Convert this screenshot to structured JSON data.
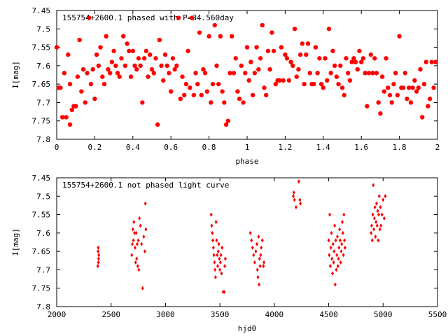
{
  "colors": {
    "series": "#ff0000",
    "axes": "#000000",
    "background": "#ffffff"
  },
  "chart_data": [
    {
      "type": "scatter",
      "title": "155754+2600.1 phased with P=34.560day",
      "xlabel": "phase",
      "ylabel": "I[mag]",
      "xlim": [
        0,
        2
      ],
      "ylim": [
        7.8,
        7.45
      ],
      "y_inverted": true,
      "xticks": [
        0,
        0.2,
        0.4,
        0.6,
        0.8,
        1,
        1.2,
        1.4,
        1.6,
        1.8,
        2
      ],
      "xtick_labels": [
        "0",
        "0.2",
        "0.4",
        "0.6",
        "0.8",
        "1",
        "1.2",
        "1.4",
        "1.6",
        "1.8",
        "2"
      ],
      "yticks": [
        7.45,
        7.5,
        7.55,
        7.6,
        7.65,
        7.7,
        7.75,
        7.8
      ],
      "ytick_labels": [
        "7.45",
        "7.5",
        "7.55",
        "7.6",
        "7.65",
        "7.7",
        "7.75",
        "7.8"
      ],
      "marker": "filled-circle",
      "points": [
        [
          0.0,
          7.55
        ],
        [
          0.01,
          7.66
        ],
        [
          0.02,
          7.66
        ],
        [
          0.03,
          7.74
        ],
        [
          0.04,
          7.62
        ],
        [
          0.05,
          7.74
        ],
        [
          0.06,
          7.57
        ],
        [
          0.07,
          7.76
        ],
        [
          0.07,
          7.65
        ],
        [
          0.08,
          7.72
        ],
        [
          0.09,
          7.71
        ],
        [
          0.1,
          7.71
        ],
        [
          0.11,
          7.63
        ],
        [
          0.12,
          7.53
        ],
        [
          0.13,
          7.67
        ],
        [
          0.14,
          7.61
        ],
        [
          0.15,
          7.7
        ],
        [
          0.16,
          7.62
        ],
        [
          0.17,
          7.47
        ],
        [
          0.18,
          7.65
        ],
        [
          0.19,
          7.61
        ],
        [
          0.2,
          7.69
        ],
        [
          0.21,
          7.57
        ],
        [
          0.22,
          7.6
        ],
        [
          0.23,
          7.55
        ],
        [
          0.24,
          7.63
        ],
        [
          0.25,
          7.65
        ],
        [
          0.26,
          7.52
        ],
        [
          0.27,
          7.61
        ],
        [
          0.28,
          7.62
        ],
        [
          0.29,
          7.59
        ],
        [
          0.3,
          7.56
        ],
        [
          0.31,
          7.6
        ],
        [
          0.32,
          7.62
        ],
        [
          0.33,
          7.63
        ],
        [
          0.34,
          7.58
        ],
        [
          0.35,
          7.52
        ],
        [
          0.36,
          7.6
        ],
        [
          0.37,
          7.54
        ],
        [
          0.38,
          7.56
        ],
        [
          0.39,
          7.63
        ],
        [
          0.4,
          7.56
        ],
        [
          0.41,
          7.6
        ],
        [
          0.42,
          7.61
        ],
        [
          0.43,
          7.58
        ],
        [
          0.44,
          7.6
        ],
        [
          0.45,
          7.7
        ],
        [
          0.46,
          7.58
        ],
        [
          0.47,
          7.56
        ],
        [
          0.48,
          7.63
        ],
        [
          0.49,
          7.57
        ],
        [
          0.5,
          7.61
        ],
        [
          0.51,
          7.62
        ],
        [
          0.52,
          7.58
        ],
        [
          0.53,
          7.76
        ],
        [
          0.54,
          7.53
        ],
        [
          0.55,
          7.6
        ],
        [
          0.56,
          7.64
        ],
        [
          0.57,
          7.57
        ],
        [
          0.58,
          7.6
        ],
        [
          0.59,
          7.62
        ],
        [
          0.6,
          7.67
        ],
        [
          0.61,
          7.58
        ],
        [
          0.62,
          7.61
        ],
        [
          0.63,
          7.6
        ],
        [
          0.64,
          7.47
        ],
        [
          0.65,
          7.69
        ],
        [
          0.66,
          7.63
        ],
        [
          0.67,
          7.68
        ],
        [
          0.68,
          7.65
        ],
        [
          0.69,
          7.56
        ],
        [
          0.7,
          7.66
        ],
        [
          0.71,
          7.47
        ],
        [
          0.72,
          7.68
        ],
        [
          0.73,
          7.62
        ],
        [
          0.74,
          7.65
        ],
        [
          0.75,
          7.51
        ],
        [
          0.76,
          7.68
        ],
        [
          0.77,
          7.61
        ],
        [
          0.78,
          7.62
        ],
        [
          0.79,
          7.67
        ],
        [
          0.8,
          7.52
        ],
        [
          0.81,
          7.7
        ],
        [
          0.82,
          7.65
        ],
        [
          0.83,
          7.49
        ],
        [
          0.84,
          7.6
        ],
        [
          0.85,
          7.65
        ],
        [
          0.86,
          7.52
        ],
        [
          0.87,
          7.67
        ],
        [
          0.88,
          7.7
        ],
        [
          0.89,
          7.76
        ],
        [
          0.9,
          7.75
        ],
        [
          0.91,
          7.62
        ],
        [
          0.92,
          7.52
        ],
        [
          0.93,
          7.62
        ],
        [
          0.94,
          7.58
        ],
        [
          0.95,
          7.67
        ],
        [
          0.96,
          7.69
        ],
        [
          0.97,
          7.6
        ],
        [
          0.98,
          7.7
        ],
        [
          0.99,
          7.62
        ],
        [
          1.0,
          7.55
        ],
        [
          1.01,
          7.64
        ],
        [
          1.02,
          7.59
        ],
        [
          1.03,
          7.68
        ],
        [
          1.04,
          7.62
        ],
        [
          1.05,
          7.55
        ],
        [
          1.06,
          7.61
        ],
        [
          1.07,
          7.58
        ],
        [
          1.08,
          7.49
        ],
        [
          1.09,
          7.66
        ],
        [
          1.1,
          7.68
        ],
        [
          1.11,
          7.56
        ],
        [
          1.12,
          7.61
        ],
        [
          1.13,
          7.51
        ],
        [
          1.14,
          7.56
        ],
        [
          1.15,
          7.65
        ],
        [
          1.16,
          7.64
        ],
        [
          1.17,
          7.64
        ],
        [
          1.18,
          7.55
        ],
        [
          1.19,
          7.64
        ],
        [
          1.2,
          7.57
        ],
        [
          1.21,
          7.58
        ],
        [
          1.22,
          7.64
        ],
        [
          1.23,
          7.59
        ],
        [
          1.24,
          7.6
        ],
        [
          1.25,
          7.5
        ],
        [
          1.26,
          7.63
        ],
        [
          1.27,
          7.61
        ],
        [
          1.28,
          7.57
        ],
        [
          1.29,
          7.54
        ],
        [
          1.3,
          7.65
        ],
        [
          1.31,
          7.57
        ],
        [
          1.32,
          7.54
        ],
        [
          1.33,
          7.62
        ],
        [
          1.34,
          7.65
        ],
        [
          1.35,
          7.65
        ],
        [
          1.36,
          7.55
        ],
        [
          1.37,
          7.62
        ],
        [
          1.38,
          7.58
        ],
        [
          1.39,
          7.65
        ],
        [
          1.4,
          7.66
        ],
        [
          1.41,
          7.58
        ],
        [
          1.42,
          7.64
        ],
        [
          1.43,
          7.5
        ],
        [
          1.44,
          7.62
        ],
        [
          1.45,
          7.56
        ],
        [
          1.46,
          7.6
        ],
        [
          1.47,
          7.63
        ],
        [
          1.48,
          7.65
        ],
        [
          1.49,
          7.6
        ],
        [
          1.5,
          7.66
        ],
        [
          1.51,
          7.68
        ],
        [
          1.52,
          7.58
        ],
        [
          1.53,
          7.62
        ],
        [
          1.54,
          7.64
        ],
        [
          1.55,
          7.59
        ],
        [
          1.56,
          7.58
        ],
        [
          1.57,
          7.59
        ],
        [
          1.58,
          7.61
        ],
        [
          1.59,
          7.56
        ],
        [
          1.6,
          7.59
        ],
        [
          1.61,
          7.58
        ],
        [
          1.62,
          7.62
        ],
        [
          1.63,
          7.71
        ],
        [
          1.64,
          7.62
        ],
        [
          1.65,
          7.57
        ],
        [
          1.66,
          7.62
        ],
        [
          1.67,
          7.58
        ],
        [
          1.68,
          7.62
        ],
        [
          1.69,
          7.7
        ],
        [
          1.7,
          7.73
        ],
        [
          1.71,
          7.63
        ],
        [
          1.72,
          7.67
        ],
        [
          1.73,
          7.58
        ],
        [
          1.74,
          7.66
        ],
        [
          1.75,
          7.68
        ],
        [
          1.76,
          7.7
        ],
        [
          1.77,
          7.65
        ],
        [
          1.78,
          7.62
        ],
        [
          1.79,
          7.68
        ],
        [
          1.8,
          7.52
        ],
        [
          1.81,
          7.66
        ],
        [
          1.82,
          7.66
        ],
        [
          1.83,
          7.62
        ],
        [
          1.84,
          7.69
        ],
        [
          1.85,
          7.66
        ],
        [
          1.86,
          7.7
        ],
        [
          1.87,
          7.66
        ],
        [
          1.88,
          7.64
        ],
        [
          1.89,
          7.67
        ],
        [
          1.9,
          7.66
        ],
        [
          1.91,
          7.61
        ],
        [
          1.92,
          7.74
        ],
        [
          1.93,
          7.65
        ],
        [
          1.94,
          7.59
        ],
        [
          1.95,
          7.71
        ],
        [
          1.96,
          7.69
        ],
        [
          1.97,
          7.59
        ],
        [
          1.98,
          7.66
        ],
        [
          1.99,
          7.59
        ]
      ]
    },
    {
      "type": "scatter",
      "title": "155754+2600.1 not phased light curve",
      "xlabel": "hjd0",
      "ylabel": "I[mag]",
      "xlim": [
        2000,
        5500
      ],
      "ylim": [
        7.8,
        7.45
      ],
      "y_inverted": true,
      "xticks": [
        2000,
        2500,
        3000,
        3500,
        4000,
        4500,
        5000,
        5500
      ],
      "xtick_labels": [
        "2000",
        "2500",
        "3000",
        "3500",
        "4000",
        "4500",
        "5000",
        "5500"
      ],
      "yticks": [
        7.45,
        7.5,
        7.55,
        7.6,
        7.65,
        7.7,
        7.75,
        7.8
      ],
      "ytick_labels": [
        "7.45",
        "7.5",
        "7.55",
        "7.6",
        "7.65",
        "7.7",
        "7.75",
        "7.8"
      ],
      "marker": "small-diamond",
      "points": [
        [
          2380,
          7.65
        ],
        [
          2385,
          7.67
        ],
        [
          2378,
          7.69
        ],
        [
          2382,
          7.64
        ],
        [
          2387,
          7.66
        ],
        [
          2383,
          7.68
        ],
        [
          2690,
          7.66
        ],
        [
          2695,
          7.63
        ],
        [
          2700,
          7.59
        ],
        [
          2705,
          7.62
        ],
        [
          2710,
          7.57
        ],
        [
          2715,
          7.6
        ],
        [
          2720,
          7.64
        ],
        [
          2725,
          7.68
        ],
        [
          2730,
          7.6
        ],
        [
          2735,
          7.67
        ],
        [
          2740,
          7.63
        ],
        [
          2745,
          7.69
        ],
        [
          2750,
          7.62
        ],
        [
          2755,
          7.7
        ],
        [
          2760,
          7.56
        ],
        [
          2770,
          7.58
        ],
        [
          2780,
          7.63
        ],
        [
          2790,
          7.75
        ],
        [
          2800,
          7.61
        ],
        [
          2810,
          7.65
        ],
        [
          2815,
          7.52
        ],
        [
          2820,
          7.59
        ],
        [
          3420,
          7.55
        ],
        [
          3425,
          7.58
        ],
        [
          3430,
          7.6
        ],
        [
          3435,
          7.62
        ],
        [
          3440,
          7.64
        ],
        [
          3445,
          7.66
        ],
        [
          3450,
          7.68
        ],
        [
          3455,
          7.7
        ],
        [
          3460,
          7.72
        ],
        [
          3465,
          7.57
        ],
        [
          3470,
          7.62
        ],
        [
          3475,
          7.66
        ],
        [
          3480,
          7.69
        ],
        [
          3485,
          7.65
        ],
        [
          3490,
          7.63
        ],
        [
          3495,
          7.67
        ],
        [
          3500,
          7.7
        ],
        [
          3505,
          7.68
        ],
        [
          3510,
          7.66
        ],
        [
          3515,
          7.71
        ],
        [
          3520,
          7.64
        ],
        [
          3530,
          7.76
        ],
        [
          3540,
          7.76
        ],
        [
          3545,
          7.69
        ],
        [
          3550,
          7.67
        ],
        [
          3780,
          7.6
        ],
        [
          3790,
          7.62
        ],
        [
          3800,
          7.64
        ],
        [
          3810,
          7.66
        ],
        [
          3820,
          7.68
        ],
        [
          3830,
          7.65
        ],
        [
          3840,
          7.63
        ],
        [
          3845,
          7.7
        ],
        [
          3850,
          7.72
        ],
        [
          3855,
          7.61
        ],
        [
          3860,
          7.74
        ],
        [
          3865,
          7.67
        ],
        [
          3870,
          7.69
        ],
        [
          3875,
          7.66
        ],
        [
          3880,
          7.64
        ],
        [
          3890,
          7.62
        ],
        [
          3900,
          7.69
        ],
        [
          3905,
          7.68
        ],
        [
          4175,
          7.5
        ],
        [
          4180,
          7.49
        ],
        [
          4185,
          7.51
        ],
        [
          4200,
          7.53
        ],
        [
          4225,
          7.46
        ],
        [
          4235,
          7.51
        ],
        [
          4240,
          7.52
        ],
        [
          4500,
          7.62
        ],
        [
          4505,
          7.66
        ],
        [
          4510,
          7.55
        ],
        [
          4515,
          7.69
        ],
        [
          4520,
          7.64
        ],
        [
          4525,
          7.6
        ],
        [
          4530,
          7.67
        ],
        [
          4535,
          7.71
        ],
        [
          4540,
          7.63
        ],
        [
          4545,
          7.68
        ],
        [
          4550,
          7.65
        ],
        [
          4555,
          7.58
        ],
        [
          4560,
          7.74
        ],
        [
          4565,
          7.62
        ],
        [
          4570,
          7.7
        ],
        [
          4575,
          7.66
        ],
        [
          4580,
          7.61
        ],
        [
          4585,
          7.69
        ],
        [
          4590,
          7.67
        ],
        [
          4595,
          7.64
        ],
        [
          4600,
          7.59
        ],
        [
          4605,
          7.62
        ],
        [
          4610,
          7.68
        ],
        [
          4615,
          7.65
        ],
        [
          4620,
          7.63
        ],
        [
          4625,
          7.57
        ],
        [
          4630,
          7.6
        ],
        [
          4635,
          7.66
        ],
        [
          4640,
          7.55
        ],
        [
          4645,
          7.62
        ],
        [
          4650,
          7.64
        ],
        [
          4890,
          7.6
        ],
        [
          4895,
          7.58
        ],
        [
          4900,
          7.62
        ],
        [
          4905,
          7.55
        ],
        [
          4910,
          7.47
        ],
        [
          4915,
          7.59
        ],
        [
          4920,
          7.56
        ],
        [
          4925,
          7.53
        ],
        [
          4930,
          7.61
        ],
        [
          4935,
          7.57
        ],
        [
          4940,
          7.52
        ],
        [
          4945,
          7.58
        ],
        [
          4950,
          7.54
        ],
        [
          4955,
          7.62
        ],
        [
          4960,
          7.55
        ],
        [
          4965,
          7.5
        ],
        [
          4970,
          7.59
        ],
        [
          4975,
          7.53
        ],
        [
          4980,
          7.58
        ],
        [
          4990,
          7.55
        ],
        [
          5000,
          7.51
        ],
        [
          5010,
          7.56
        ],
        [
          5020,
          7.5
        ]
      ]
    }
  ]
}
